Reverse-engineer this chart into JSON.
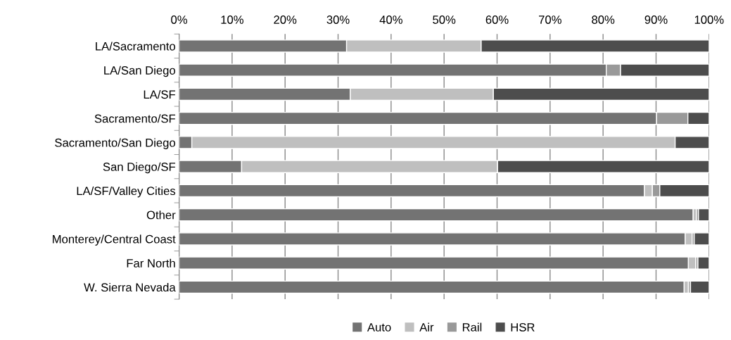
{
  "chart_data": {
    "type": "bar",
    "orientation": "horizontal",
    "stacked": true,
    "categories": [
      "LA/Sacramento",
      "LA/San Diego",
      "LA/SF",
      "Sacramento/SF",
      "Sacramento/San Diego",
      "San Diego/SF",
      "LA/SF/Valley Cities",
      "Other",
      "Monterey/Central Coast",
      "Far North",
      "W. Sierra Nevada"
    ],
    "series": [
      {
        "name": "Auto",
        "color": "#737373",
        "values": [
          31.6,
          80.6,
          32.3,
          90.1,
          2.4,
          11.8,
          87.8,
          97.0,
          95.5,
          96.1,
          95.3
        ]
      },
      {
        "name": "Air",
        "color": "#bfbfbf",
        "values": [
          25.4,
          0,
          27.0,
          0,
          91.2,
          48.3,
          1.5,
          0.6,
          1.3,
          1.4,
          0.8
        ]
      },
      {
        "name": "Rail",
        "color": "#999999",
        "values": [
          0,
          2.7,
          0,
          5.9,
          0,
          0,
          1.4,
          0.4,
          0.4,
          0.4,
          0.4
        ]
      },
      {
        "name": "HSR",
        "color": "#4d4d4d",
        "values": [
          43.0,
          16.7,
          40.7,
          4.0,
          6.4,
          39.9,
          9.3,
          2.0,
          2.8,
          2.1,
          3.5
        ]
      }
    ],
    "xlim": [
      0,
      100
    ],
    "xticks": [
      {
        "value": 0,
        "label": "0%"
      },
      {
        "value": 10,
        "label": "10%"
      },
      {
        "value": 20,
        "label": "20%"
      },
      {
        "value": 30,
        "label": "30%"
      },
      {
        "value": 40,
        "label": "40%"
      },
      {
        "value": 50,
        "label": "50%"
      },
      {
        "value": 60,
        "label": "60%"
      },
      {
        "value": 70,
        "label": "70%"
      },
      {
        "value": 80,
        "label": "80%"
      },
      {
        "value": 90,
        "label": "90%"
      },
      {
        "value": 100,
        "label": "100%"
      }
    ],
    "grid": "x",
    "legend": "bottom"
  }
}
